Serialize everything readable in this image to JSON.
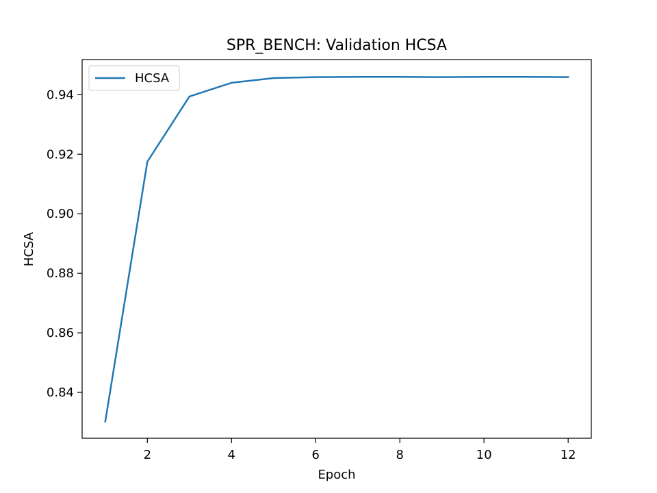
{
  "chart_data": {
    "type": "line",
    "title": "SPR_BENCH: Validation HCSA",
    "xlabel": "Epoch",
    "ylabel": "HCSA",
    "xlim": [
      0.45,
      12.55
    ],
    "ylim": [
      0.8246,
      0.9518
    ],
    "xticks": [
      2,
      4,
      6,
      8,
      10,
      12
    ],
    "yticks": [
      0.84,
      0.86,
      0.88,
      0.9,
      0.92,
      0.94
    ],
    "xtick_labels": [
      "2",
      "4",
      "6",
      "8",
      "10",
      "12"
    ],
    "ytick_labels": [
      "0.84",
      "0.86",
      "0.88",
      "0.90",
      "0.92",
      "0.94"
    ],
    "grid": false,
    "legend_position": "upper-left",
    "series": [
      {
        "name": "HCSA",
        "color": "#1f77b4",
        "x": [
          1,
          2,
          3,
          4,
          5,
          6,
          7,
          8,
          9,
          10,
          11,
          12
        ],
        "y": [
          0.8302,
          0.9175,
          0.9394,
          0.944,
          0.9456,
          0.9459,
          0.946,
          0.946,
          0.9459,
          0.946,
          0.946,
          0.9459
        ]
      }
    ]
  }
}
